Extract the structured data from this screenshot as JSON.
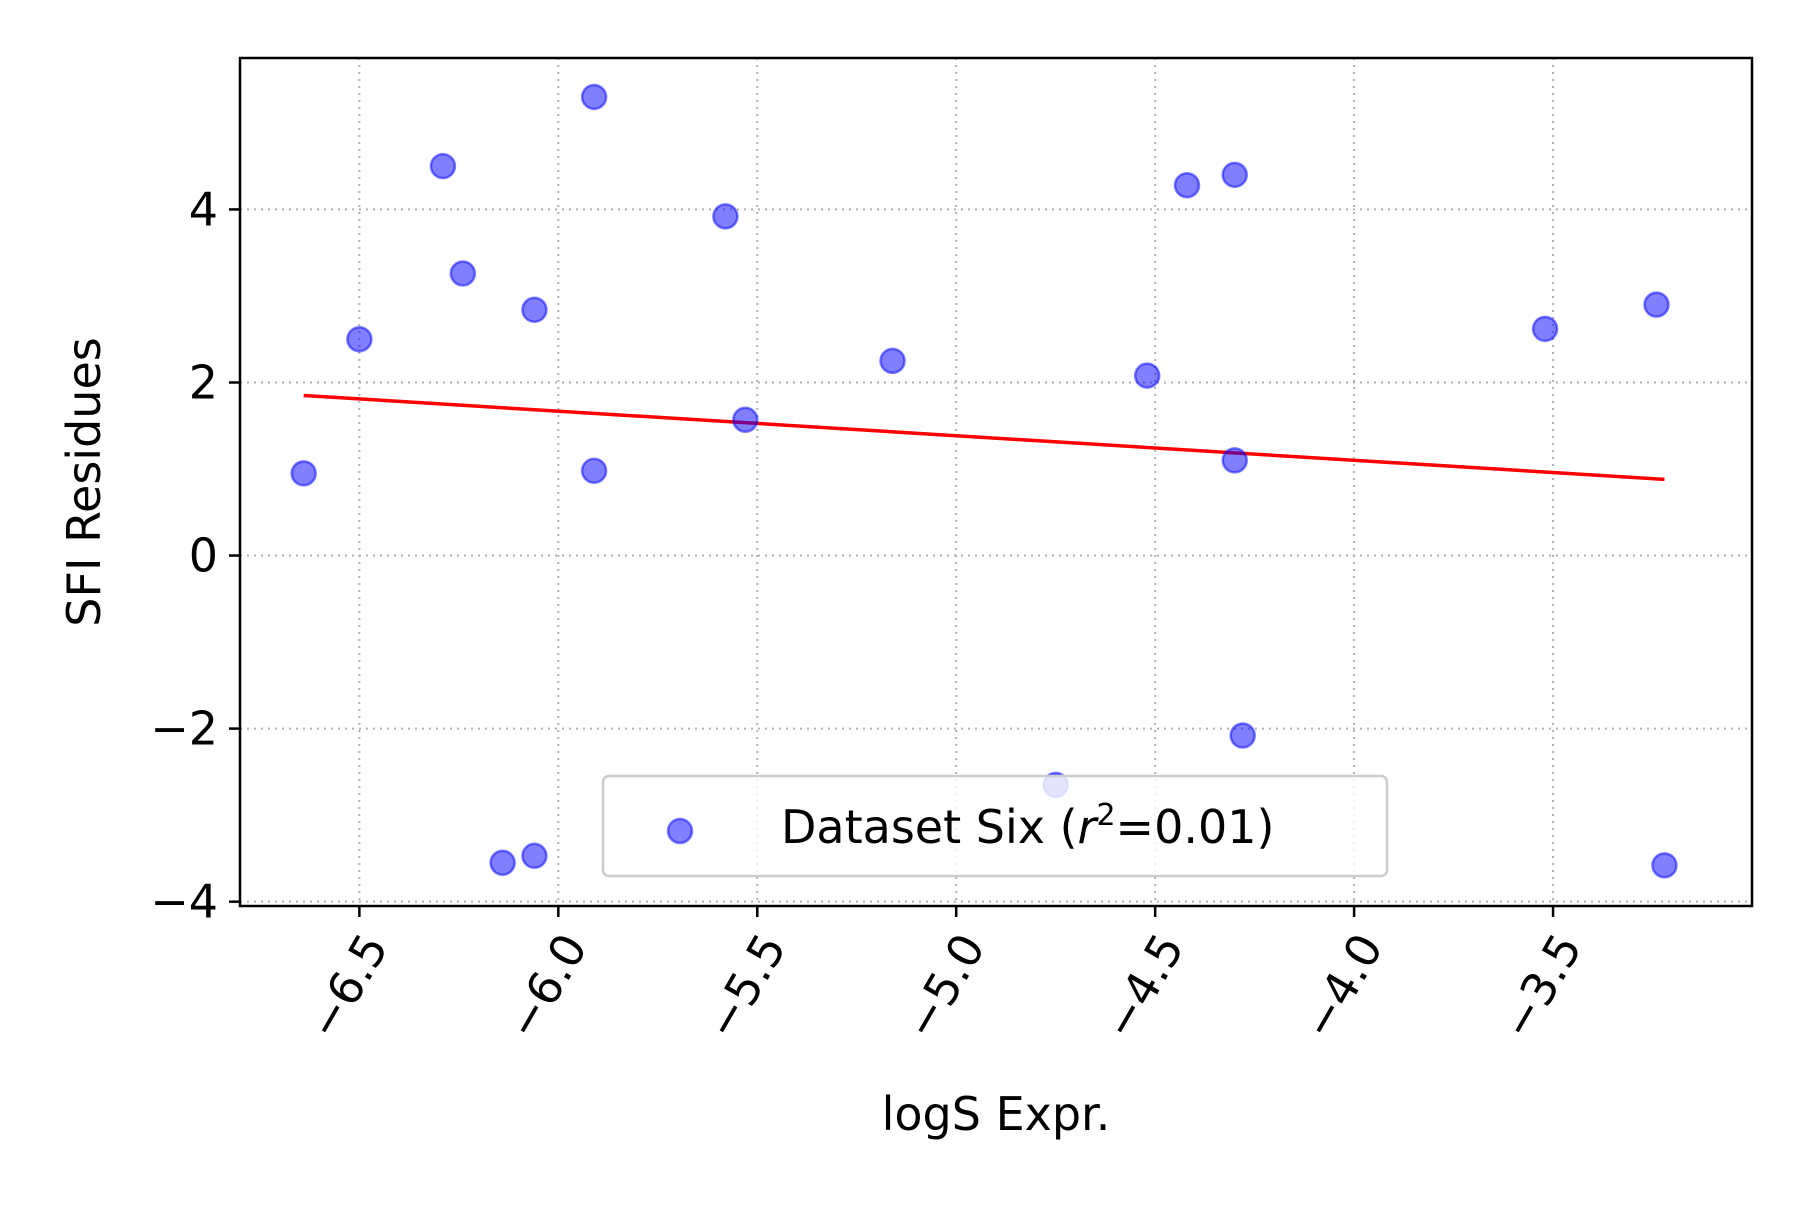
{
  "chart_data": {
    "type": "scatter",
    "xlabel": "logS Expr.",
    "ylabel": "SFI Residues",
    "xlim": [
      -6.8,
      -3.0
    ],
    "ylim": [
      -4.05,
      5.75
    ],
    "x_ticks": [
      -6.5,
      -6.0,
      -5.5,
      -5.0,
      -4.5,
      -4.0,
      -3.5
    ],
    "x_tick_labels": [
      "−6.5",
      "−6.0",
      "−5.5",
      "−5.0",
      "−4.5",
      "−4.0",
      "−3.5"
    ],
    "y_ticks": [
      -4,
      -2,
      0,
      2,
      4
    ],
    "y_tick_labels": [
      "−4",
      "−2",
      "0",
      "2",
      "4"
    ],
    "x_tick_rotation_deg": 60,
    "grid": true,
    "legend_position": "lower center",
    "series": [
      {
        "name": "Dataset Six",
        "legend_prefix": "Dataset Six (",
        "legend_var": "r",
        "legend_sup": "2",
        "legend_suffix": "=0.01)",
        "color": "#0000ff",
        "alpha": 0.5,
        "points": [
          {
            "x": -6.64,
            "y": 0.95
          },
          {
            "x": -6.5,
            "y": 2.5
          },
          {
            "x": -6.29,
            "y": 4.5
          },
          {
            "x": -6.24,
            "y": 3.26
          },
          {
            "x": -6.14,
            "y": -3.55
          },
          {
            "x": -6.06,
            "y": 2.84
          },
          {
            "x": -6.06,
            "y": -3.47
          },
          {
            "x": -5.91,
            "y": 5.3
          },
          {
            "x": -5.91,
            "y": 0.98
          },
          {
            "x": -5.58,
            "y": 3.92
          },
          {
            "x": -5.53,
            "y": 1.57
          },
          {
            "x": -5.16,
            "y": 2.25
          },
          {
            "x": -4.75,
            "y": -2.65
          },
          {
            "x": -4.52,
            "y": 2.08
          },
          {
            "x": -4.42,
            "y": 4.28
          },
          {
            "x": -4.3,
            "y": 4.4
          },
          {
            "x": -4.3,
            "y": 1.1
          },
          {
            "x": -4.28,
            "y": -2.08
          },
          {
            "x": -3.52,
            "y": 2.62
          },
          {
            "x": -3.24,
            "y": 2.9
          },
          {
            "x": -3.22,
            "y": -3.58
          }
        ]
      }
    ],
    "fit_line": {
      "color": "#ff0000",
      "points": [
        {
          "x": -6.64,
          "y": 1.85
        },
        {
          "x": -3.22,
          "y": 0.88
        }
      ]
    }
  }
}
